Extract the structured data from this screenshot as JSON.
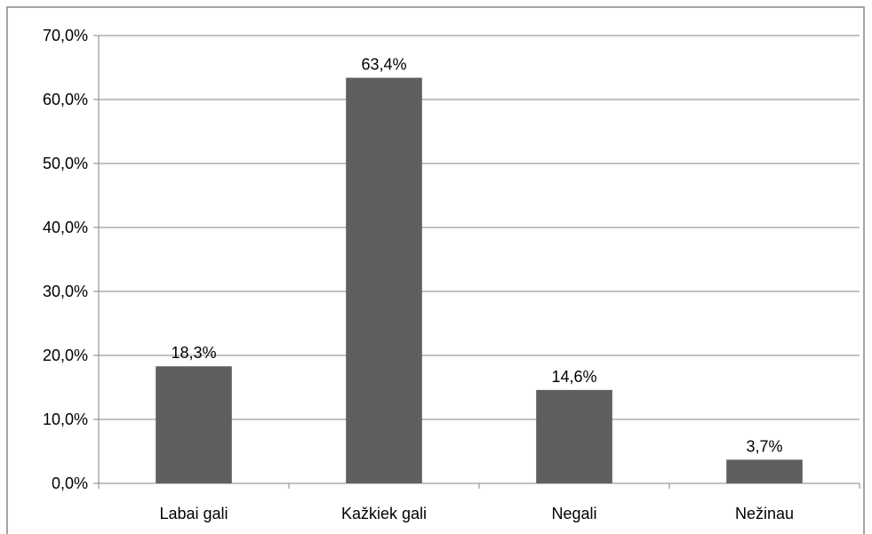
{
  "chart_data": {
    "type": "bar",
    "categories": [
      "Labai gali",
      "Kažkiek gali",
      "Negali",
      "Nežinau"
    ],
    "values": [
      18.3,
      63.4,
      14.6,
      3.7
    ],
    "data_labels": [
      "18,3%",
      "63,4%",
      "14,6%",
      "3,7%"
    ],
    "y_ticks": [
      "0,0%",
      "10,0%",
      "20,0%",
      "30,0%",
      "40,0%",
      "50,0%",
      "60,0%",
      "70,0%"
    ],
    "ylim": [
      0,
      70
    ],
    "grid": true,
    "legend": "none",
    "bar_color": "#5f5f5f",
    "grid_color": "#868686",
    "border_color": "#868686"
  }
}
